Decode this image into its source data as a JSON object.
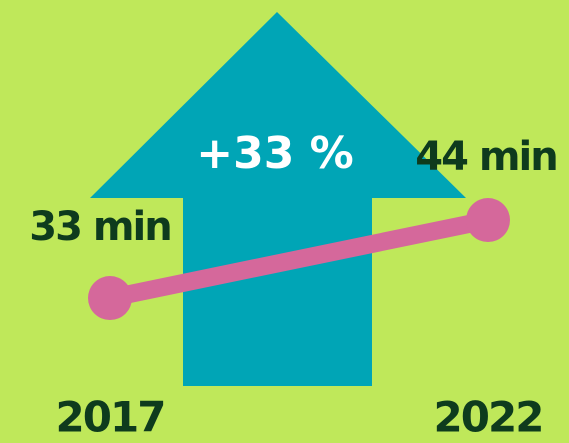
{
  "chart_data": {
    "type": "line",
    "categories": [
      "2017",
      "2022"
    ],
    "values": [
      33,
      44
    ],
    "value_labels": [
      "33 min",
      "44 min"
    ],
    "annotation": "+33 %",
    "color": "#d5689b"
  }
}
